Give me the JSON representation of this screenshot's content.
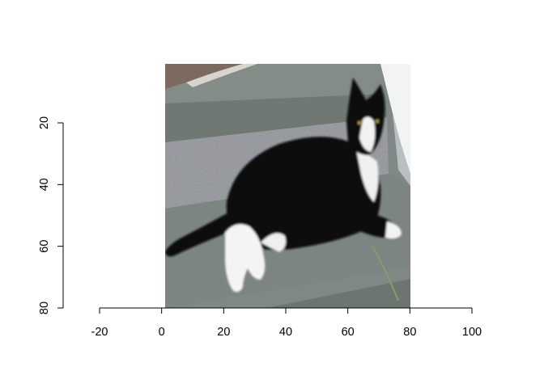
{
  "chart_data": {
    "type": "image",
    "title": "",
    "xlabel": "",
    "ylabel": "",
    "xlim": [
      -20,
      100
    ],
    "ylim": [
      80,
      20
    ],
    "x_ticks": [
      -20,
      0,
      20,
      40,
      60,
      80,
      100
    ],
    "y_ticks": [
      20,
      40,
      60,
      80
    ],
    "x_tick_labels": [
      "-20",
      "0",
      "20",
      "40",
      "60",
      "80",
      "100"
    ],
    "y_tick_labels": [
      "20",
      "40",
      "60",
      "80"
    ],
    "image_extent": {
      "x": [
        1,
        80
      ],
      "y": [
        1,
        80
      ]
    },
    "image_subject": "black-and-white cat lying on gray stone steps",
    "grid": false,
    "legend": "none"
  }
}
